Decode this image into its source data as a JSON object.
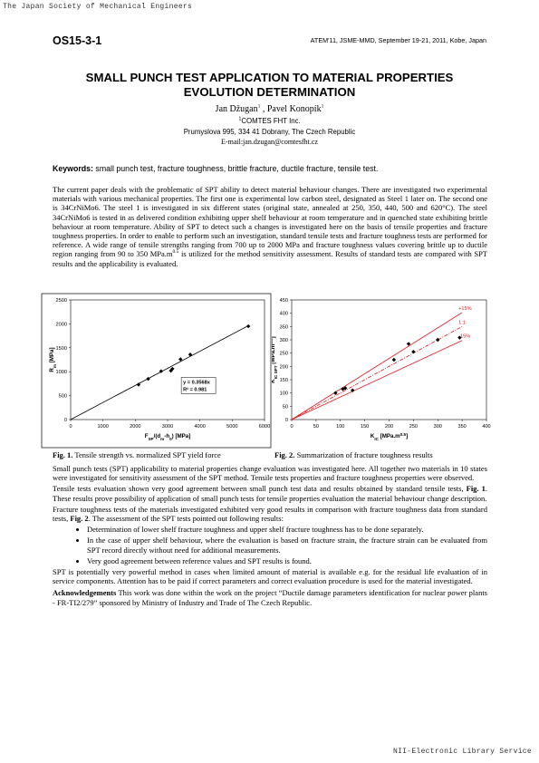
{
  "header": {
    "society": "The Japan Society of Mechanical Engineers",
    "code": "OS15-3-1",
    "conference": "ATEM'11, JSME-MMD, September 19-21, 2011, Kobe, Japan"
  },
  "title": [
    "SMALL PUNCH TEST APPLICATION TO MATERIAL PROPERTIES",
    "EVOLUTION DETERMINATION"
  ],
  "authors": [
    {
      "text": "Jan Džugan"
    },
    {
      "text": "1",
      "sup": true
    },
    {
      "text": " , Pavel Konopík"
    },
    {
      "text": "1",
      "sup": true
    }
  ],
  "affiliation": [
    {
      "text": "1",
      "sup": true
    },
    {
      "text": "COMTES FHT Inc."
    }
  ],
  "address": "Prumyslova 995, 334 41 Dobrany, The Czech Republic",
  "email": "E-mail:jan.dzugan@comtesfht.cz",
  "keywords": [
    {
      "text": "Keywords:",
      "bold": true
    },
    {
      "text": " small punch test, fracture toughness, brittle fracture, ductile fracture, tensile test."
    }
  ],
  "abstract": [
    {
      "text": "The current paper deals with the problematic of SPT ability to detect material behaviour changes. There are investigated two experimental materials with various mechanical properties. The first one is experimental low carbon steel, designated as Steel 1 later on. The second one is 34CrNiMo6. The steel 1 is investigated in six different states (original state, annealed at 250, 350, 440, 500 and 620°C). The steel 34CrNiMo6 is tested in as delivered condition exhibiting upper shelf behaviour at room temperature and in quenched state exhibiting brittle behaviour at room temperature. Ability of SPT to detect such a changes is investigated here on the basis of tensile properties and fracture toughness properties. In order to enable to perform such an investigation, standard tensile tests and fracture toughness tests are performed for reference. A wide range of tensile strengths ranging from 700 up to 2000 MPa and fracture toughness values covering brittle up to ductile region ranging from 90 to 350 MPa.m"
    },
    {
      "text": "0.5",
      "sup": true
    },
    {
      "text": " is utilized for the method sensitivity assessment. Results of standard tests are compared with SPT results and the applicability is evaluated."
    }
  ],
  "chart_data": [
    {
      "type": "scatter",
      "color": "#000000",
      "x": [
        2100,
        2400,
        2800,
        3100,
        3150,
        3400,
        3700,
        5500
      ],
      "values": [
        730,
        850,
        1010,
        1020,
        1060,
        1260,
        1360,
        1950
      ],
      "xlim": [
        0,
        6000
      ],
      "xticks": [
        0,
        1000,
        2000,
        3000,
        4000,
        5000,
        6000
      ],
      "ylim": [
        0,
        2500
      ],
      "yticks": [
        0,
        500,
        1000,
        1500,
        2000,
        2500
      ],
      "x_label": [
        {
          "text": "F"
        },
        {
          "text": "SP",
          "sub": true
        },
        {
          "text": "/(d"
        },
        {
          "text": "m",
          "sub": true
        },
        {
          "text": "-h"
        },
        {
          "text": "0",
          "sub": true
        },
        {
          "text": ") [MPa]"
        }
      ],
      "y_label": [
        {
          "text": "R"
        },
        {
          "text": "m",
          "sub": true
        },
        {
          "text": " [MPa]"
        }
      ],
      "trendline": {
        "x": [
          0,
          5500
        ],
        "slope": 0.3568
      },
      "annotation": [
        "y = 0.3568x",
        "R² = 0.981"
      ]
    },
    {
      "type": "scatter",
      "color": "#000000",
      "x": [
        90,
        105,
        110,
        125,
        210,
        240,
        250,
        300,
        345
      ],
      "values": [
        100,
        115,
        118,
        110,
        225,
        285,
        255,
        300,
        308
      ],
      "xlim": [
        0,
        400
      ],
      "xticks": [
        0,
        50,
        100,
        150,
        200,
        250,
        300,
        350,
        400
      ],
      "ylim": [
        0,
        450
      ],
      "yticks": [
        0,
        50,
        100,
        150,
        200,
        250,
        300,
        350,
        400,
        450
      ],
      "x_label": [
        {
          "text": "K"
        },
        {
          "text": "IC",
          "sub": true
        },
        {
          "text": " [MPa.m"
        },
        {
          "text": "0.5",
          "sup": true
        },
        {
          "text": "]"
        }
      ],
      "y_label": [
        {
          "text": "K"
        },
        {
          "text": "IC SPT",
          "sub": true
        },
        {
          "text": " [MPa.m"
        },
        {
          "text": "0.5",
          "sup": true
        },
        {
          "text": "]"
        }
      ],
      "lines": [
        {
          "label": "+15%",
          "color": "#e8141c",
          "style": "solid",
          "x": [
            0,
            350
          ],
          "values": [
            0,
            402.5
          ]
        },
        {
          "label": "1:1",
          "color": "#e8141c",
          "style": "dash-dot",
          "x": [
            0,
            350
          ],
          "values": [
            0,
            350
          ]
        },
        {
          "label": "-15%",
          "color": "#e8141c",
          "style": "solid",
          "x": [
            0,
            350
          ],
          "values": [
            0,
            297.5
          ]
        }
      ]
    }
  ],
  "captions": [
    {
      "label": "Fig. 1.",
      "text": " Tensile strength vs. normalized SPT yield force"
    },
    {
      "label": "Fig. 2.",
      "text": " Summarization of fracture toughness results"
    }
  ],
  "body": [
    [
      {
        "text": "Small punch tests (SPT) applicability to material properties change evaluation was investigated here. All together two materials in 10 states were investigated for sensitivity assessment of the SPT method. Tensile tests properties and fracture toughness properties were observed."
      }
    ],
    [
      {
        "text": "Tensile tests evaluation shown very good agreement between small punch test data and results obtained by standard tensile tests, "
      },
      {
        "text": "Fig. 1",
        "bold": true
      },
      {
        "text": ". These results prove possibility of application of small punch tests for tensile properties evaluation the material behaviour change description."
      }
    ],
    [
      {
        "text": "Fracture toughness tests of the materials investigated exhibited very good results in comparison with fracture toughness data from standard tests, "
      },
      {
        "text": "Fig. 2",
        "bold": true
      },
      {
        "text": ". The assessment of the SPT tests pointed out following results:"
      }
    ]
  ],
  "bullets": [
    "Determination of lower shelf fracture toughness and upper shelf fracture toughness has to be done separately.",
    "In the case of upper shelf behaviour, where the evaluation is based on fracture strain, the fracture strain can be evaluated from SPT record directly without need for additional measurements.",
    "Very good agreement between reference values and SPT results is found."
  ],
  "closing": [
    [
      {
        "text": "SPT is potentially very powerful method in cases when limited amount of material is available e.g. for the residual life evaluation of in service components. Attention has to be paid if correct parameters and correct evaluation procedure is used for the material investigated."
      }
    ],
    [
      {
        "text": "Acknowledgements",
        "bold": true
      },
      {
        "text": " This work was done within the work on the project “Ductile damage parameters identification for nuclear power plants - FR-TI2/279” sponsored by Ministry of Industry and Trade of The Czech Republic."
      }
    ]
  ],
  "footer": "NII-Electronic Library Service"
}
